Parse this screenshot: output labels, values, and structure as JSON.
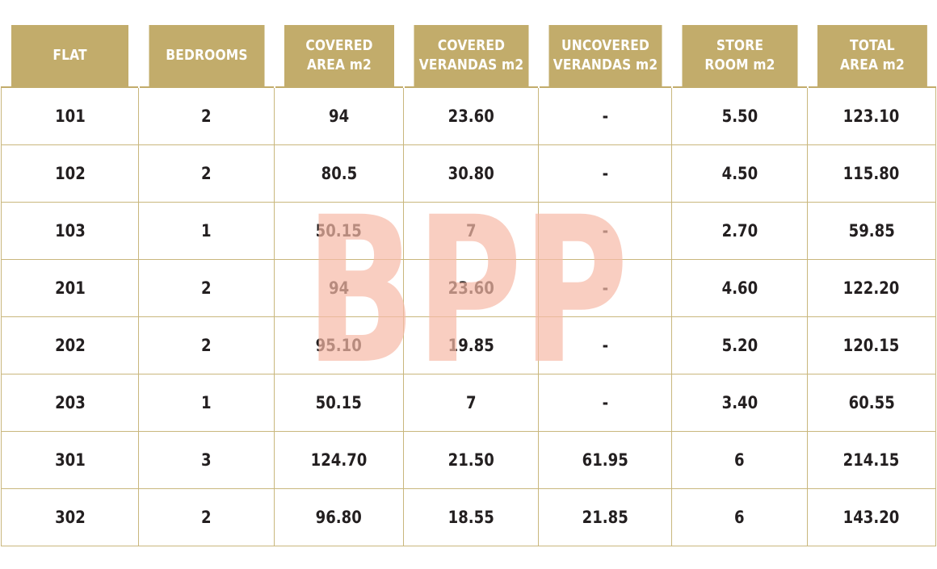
{
  "table": {
    "headers": [
      [
        "FLAT"
      ],
      [
        "BEDROOMS"
      ],
      [
        "COVERED",
        "AREA m2"
      ],
      [
        "COVERED",
        "VERANDAS m2"
      ],
      [
        "UNCOVERED",
        "VERANDAS m2"
      ],
      [
        "STORE",
        "ROOM m2"
      ],
      [
        "TOTAL",
        "AREA m2"
      ]
    ],
    "rows": [
      [
        "101",
        "2",
        "94",
        "23.60",
        "-",
        "5.50",
        "123.10"
      ],
      [
        "102",
        "2",
        "80.5",
        "30.80",
        "-",
        "4.50",
        "115.80"
      ],
      [
        "103",
        "1",
        "50.15",
        "7",
        "-",
        "2.70",
        "59.85"
      ],
      [
        "201",
        "2",
        "94",
        "23.60",
        "-",
        "4.60",
        "122.20"
      ],
      [
        "202",
        "2",
        "95.10",
        "19.85",
        "-",
        "5.20",
        "120.15"
      ],
      [
        "203",
        "1",
        "50.15",
        "7",
        "-",
        "3.40",
        "60.55"
      ],
      [
        "301",
        "3",
        "124.70",
        "21.50",
        "61.95",
        "6",
        "214.15"
      ],
      [
        "302",
        "2",
        "96.80",
        "18.55",
        "21.85",
        "6",
        "143.20"
      ]
    ]
  },
  "watermark": {
    "text": "BPP",
    "color": "#f6b9a6"
  },
  "colors": {
    "header_bg": "#c2ac6b",
    "header_text": "#ffffff",
    "border": "#c9b77d",
    "cell_text": "#231f20"
  }
}
